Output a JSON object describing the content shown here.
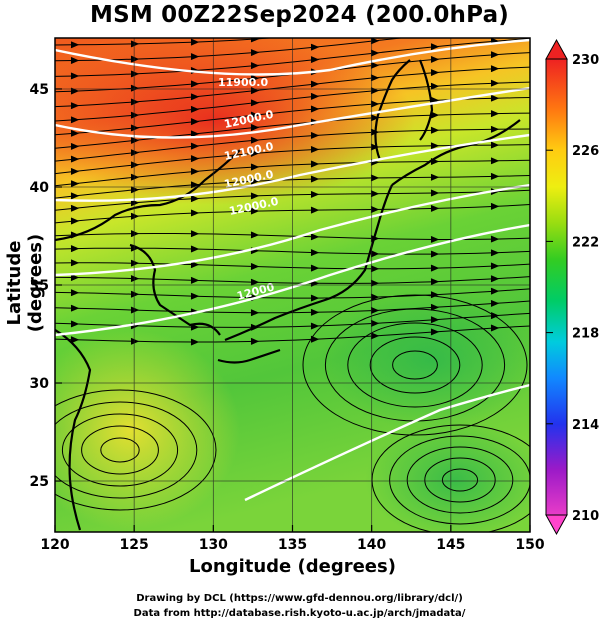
{
  "title": "MSM 00Z22Sep2024 (200.0hPa)",
  "x_axis": {
    "label": "Longitude (degrees)",
    "ticks": [
      "120",
      "125",
      "130",
      "135",
      "140",
      "145",
      "150"
    ]
  },
  "y_axis": {
    "label": "Latitude  (degrees)",
    "ticks": [
      "25",
      "30",
      "35",
      "40",
      "45"
    ]
  },
  "colorbar": {
    "ticks": [
      "230",
      "226",
      "222",
      "218",
      "214",
      "210"
    ],
    "colors": [
      "#ff33cc",
      "#9900cc",
      "#1a33ff",
      "#00aaff",
      "#00ddaa",
      "#00cc33",
      "#66dd00",
      "#ccee00",
      "#ffee00",
      "#ffcc00",
      "#ff7700",
      "#ee2222"
    ]
  },
  "contour_labels": [
    "11900.0",
    "12000.0",
    "12100.0",
    "12000.0",
    "12000.0",
    "12000"
  ],
  "credits": {
    "line1": "Drawing by DCL (https://www.gfd-dennou.org/library/dcl/)",
    "line2": "Data from http://database.rish.kyoto-u.ac.jp/arch/jmadata/"
  }
}
